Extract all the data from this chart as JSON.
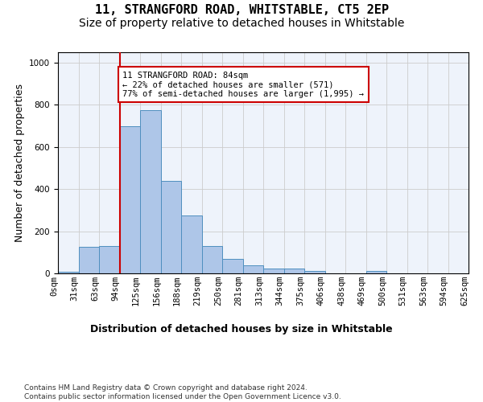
{
  "title": "11, STRANGFORD ROAD, WHITSTABLE, CT5 2EP",
  "subtitle": "Size of property relative to detached houses in Whitstable",
  "xlabel": "Distribution of detached houses by size in Whitstable",
  "ylabel": "Number of detached properties",
  "bar_values": [
    8,
    125,
    128,
    700,
    775,
    440,
    275,
    130,
    70,
    40,
    22,
    22,
    12,
    0,
    0,
    10,
    0,
    0,
    0,
    0
  ],
  "x_labels": [
    "0sqm",
    "31sqm",
    "63sqm",
    "94sqm",
    "125sqm",
    "156sqm",
    "188sqm",
    "219sqm",
    "250sqm",
    "281sqm",
    "313sqm",
    "344sqm",
    "375sqm",
    "406sqm",
    "438sqm",
    "469sqm",
    "500sqm",
    "531sqm",
    "563sqm",
    "594sqm",
    "625sqm"
  ],
  "bar_color": "#aec6e8",
  "bar_edge_color": "#4f8fbf",
  "vline_x": 3,
  "vline_color": "#cc0000",
  "ylim": [
    0,
    1050
  ],
  "annotation_text": "11 STRANGFORD ROAD: 84sqm\n← 22% of detached houses are smaller (571)\n77% of semi-detached houses are larger (1,995) →",
  "annotation_box_color": "#ffffff",
  "annotation_box_edge": "#cc0000",
  "footer_text": "Contains HM Land Registry data © Crown copyright and database right 2024.\nContains public sector information licensed under the Open Government Licence v3.0.",
  "background_color": "#ffffff",
  "grid_color": "#cccccc",
  "title_fontsize": 11,
  "subtitle_fontsize": 10,
  "axis_label_fontsize": 9,
  "tick_fontsize": 7.5,
  "footer_fontsize": 6.5
}
